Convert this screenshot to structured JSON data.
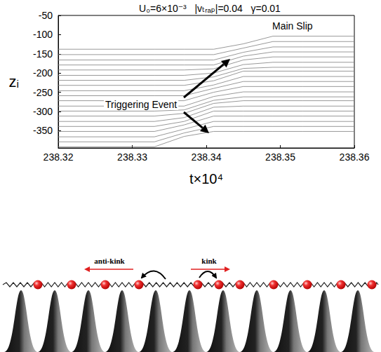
{
  "chart_data": {
    "type": "line",
    "title": "U₀=6×10⁻³   |vₜᵣₐₚ|=0.04   γ=0.01",
    "x_label": "t×10⁴",
    "y_label": "zᵢ",
    "color": "#7f7f7f",
    "x": [
      238.32,
      238.333,
      238.337,
      238.341,
      238.345,
      238.349,
      238.353,
      238.36
    ],
    "series": [
      {
        "values": [
          -392,
          -392,
          -365,
          -352,
          -352,
          -352,
          -352,
          -352
        ]
      },
      {
        "values": [
          -379,
          -379,
          -356,
          -339,
          -339,
          -339,
          -339,
          -339
        ]
      },
      {
        "values": [
          -366,
          -366,
          -346,
          -326,
          -326,
          -326,
          -326,
          -326
        ]
      },
      {
        "values": [
          -352,
          -352,
          -335,
          -312,
          -312,
          -312,
          -312,
          -312
        ]
      },
      {
        "values": [
          -339,
          -339,
          -326,
          -299,
          -299,
          -299,
          -299,
          -299
        ]
      },
      {
        "values": [
          -326,
          -326,
          -316,
          -289,
          -286,
          -286,
          -286,
          -286
        ]
      },
      {
        "values": [
          -312,
          -312,
          -305,
          -279,
          -272,
          -272,
          -272,
          -272
        ]
      },
      {
        "values": [
          -299,
          -299,
          -296,
          -271,
          -262,
          -262,
          -262,
          -262
        ]
      },
      {
        "values": [
          -286,
          -286,
          -286,
          -261,
          -249,
          -249,
          -249,
          -249
        ]
      },
      {
        "values": [
          -272,
          -272,
          -272,
          -250,
          -235,
          -235,
          -235,
          -235
        ]
      },
      {
        "values": [
          -259,
          -259,
          -259,
          -240,
          -222,
          -222,
          -222,
          -222
        ]
      },
      {
        "values": [
          -246,
          -246,
          -246,
          -231,
          -209,
          -209,
          -209,
          -209
        ]
      },
      {
        "values": [
          -232,
          -232,
          -232,
          -220,
          -195,
          -195,
          -195,
          -195
        ]
      },
      {
        "values": [
          -219,
          -219,
          -219,
          -210,
          -188,
          -185,
          -185,
          -185
        ]
      },
      {
        "values": [
          -206,
          -206,
          -206,
          -200,
          -178,
          -172,
          -172,
          -172
        ]
      },
      {
        "values": [
          -192,
          -192,
          -192,
          -189,
          -166,
          -158,
          -158,
          -158
        ]
      },
      {
        "values": [
          -179,
          -179,
          -179,
          -179,
          -156,
          -145,
          -145,
          -145
        ]
      },
      {
        "values": [
          -166,
          -166,
          -166,
          -166,
          -146,
          -132,
          -132,
          -132
        ]
      },
      {
        "values": [
          -152,
          -152,
          -152,
          -152,
          -135,
          -118,
          -118,
          -118
        ]
      },
      {
        "values": [
          -138,
          -138,
          -138,
          -138,
          -124,
          -104,
          -104,
          -104
        ]
      }
    ],
    "xlim": [
      238.32,
      238.36
    ],
    "xticks": [
      238.32,
      238.33,
      238.34,
      238.35,
      238.36
    ],
    "ylim": [
      -395,
      -50
    ],
    "yticks": [
      -350,
      -300,
      -250,
      -200,
      -150,
      -100,
      -50
    ],
    "grid": false,
    "annotations": [
      "Main Slip",
      "Triggering Event"
    ]
  },
  "diagram": {
    "labels": [
      "anti-kink",
      "kink"
    ]
  }
}
